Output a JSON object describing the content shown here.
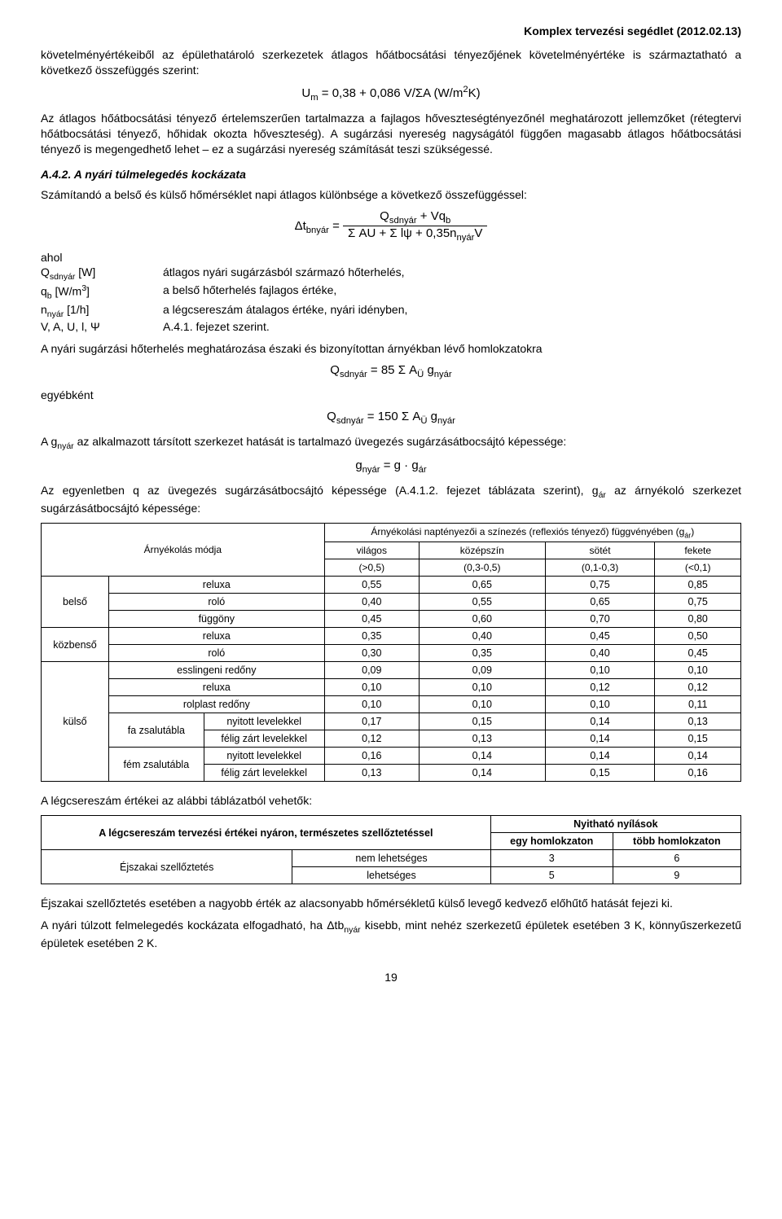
{
  "header": "Komplex tervezési segédlet (2012.02.13)",
  "p1": "követelményértékeiből az épülethatároló szerkezetek átlagos hőátbocsátási tényezőjének követelményértéke is származtatható a következő összefüggés szerint:",
  "f1": "U<sub>m</sub> = 0,38 + 0,086 V/ΣA (W/m<sup>2</sup>K)",
  "p2": "Az átlagos hőátbocsátási tényező értelemszerűen tartalmazza a fajlagos hőveszteségtényezőnél meghatározott jellemzőket (rétegtervi hőátbocsátási tényező, hőhidak okozta hőveszteség). A sugárzási nyereség nagyságától függően magasabb átlagos hőátbocsátási tényező is megengedhető lehet – ez a sugárzási nyereség számítását teszi szükségessé.",
  "sec": "A.4.2. A nyári túlmelegedés kockázata",
  "p3": "Számítandó a belső és külső hőmérséklet napi átlagos különbsége a következő összefüggéssel:",
  "frac_left": "Δt<sub>bnyár</sub> =",
  "frac_num": "Q<sub>sdnyár</sub> + Vq<sub>b</sub>",
  "frac_den": "Σ AU + Σ lψ + 0,35n<sub>nyár</sub>V",
  "defs_intro": "ahol",
  "defs": [
    {
      "k": "Q<sub>sdnyár</sub> [W]",
      "v": "átlagos nyári sugárzásból származó hőterhelés,"
    },
    {
      "k": "q<sub>b</sub> [W/m<sup>3</sup>]",
      "v": "a belső hőterhelés fajlagos értéke,"
    },
    {
      "k": "n<sub>nyár</sub> [1/h]",
      "v": "a légcsereszám átalagos értéke, nyári idényben,"
    },
    {
      "k": "V, A, U, l, Ψ",
      "v": "A.4.1. fejezet szerint."
    }
  ],
  "p4": "A nyári sugárzási hőterhelés meghatározása északi és bizonyítottan árnyékban lévő homlokzatokra",
  "f2": "Q<sub>sdnyár</sub> = 85 Σ A<sub>Ü</sub> g<sub>nyár</sub>",
  "p5": "egyébként",
  "f3": "Q<sub>sdnyár</sub> = 150 Σ A<sub>Ü</sub> g<sub>nyár</sub>",
  "p6": "A g<sub>nyár</sub> az alkalmazott társított szerkezet hatását is tartalmazó üvegezés sugárzásátbocsájtó képessége:",
  "f4": "g<sub>nyár</sub> = g · g<sub>ár</sub>",
  "p7": "Az egyenletben q az üvegezés sugárzásátbocsájtó képessége (A.4.1.2. fejezet táblázata szerint), g<sub>ár</sub> az árnyékoló szerkezet sugárzásátbocsájtó képessége:",
  "t1": {
    "h_main": "Árnyékolás módja",
    "h_super": "Árnyékolási naptényezői a színezés (reflexiós tényező) függvényében (g<sub>ár</sub>)",
    "cols": [
      {
        "label": "világos",
        "range": "(>0,5)"
      },
      {
        "label": "középszín",
        "range": "(0,3-0,5)"
      },
      {
        "label": "sötét",
        "range": "(0,1-0,3)"
      },
      {
        "label": "fekete",
        "range": "(<0,1)"
      }
    ],
    "groups": [
      {
        "group": "belső",
        "rowspan": 3,
        "rows": [
          {
            "name": "reluxa",
            "v": [
              "0,55",
              "0,65",
              "0,75",
              "0,85"
            ]
          },
          {
            "name": "roló",
            "v": [
              "0,40",
              "0,55",
              "0,65",
              "0,75"
            ]
          },
          {
            "name": "függöny",
            "v": [
              "0,45",
              "0,60",
              "0,70",
              "0,80"
            ]
          }
        ]
      },
      {
        "group": "közbenső",
        "rowspan": 2,
        "rows": [
          {
            "name": "reluxa",
            "v": [
              "0,35",
              "0,40",
              "0,45",
              "0,50"
            ]
          },
          {
            "name": "roló",
            "v": [
              "0,30",
              "0,35",
              "0,40",
              "0,45"
            ]
          }
        ]
      },
      {
        "group": "külső",
        "rowspan": 7,
        "rows": [
          {
            "name": "esslingeni redőny",
            "v": [
              "0,09",
              "0,09",
              "0,10",
              "0,10"
            ]
          },
          {
            "name": "reluxa",
            "v": [
              "0,10",
              "0,10",
              "0,12",
              "0,12"
            ]
          },
          {
            "name": "rolplast redőny",
            "v": [
              "0,10",
              "0,10",
              "0,10",
              "0,11"
            ]
          }
        ],
        "subgroups": [
          {
            "sub": "fa zsalutábla",
            "rows": [
              {
                "name": "nyitott levelekkel",
                "v": [
                  "0,17",
                  "0,15",
                  "0,14",
                  "0,13"
                ]
              },
              {
                "name": "félig zárt levelekkel",
                "v": [
                  "0,12",
                  "0,13",
                  "0,14",
                  "0,15"
                ]
              }
            ]
          },
          {
            "sub": "fém zsalutábla",
            "rows": [
              {
                "name": "nyitott levelekkel",
                "v": [
                  "0,16",
                  "0,14",
                  "0,14",
                  "0,14"
                ]
              },
              {
                "name": "félig zárt levelekkel",
                "v": [
                  "0,13",
                  "0,14",
                  "0,15",
                  "0,16"
                ]
              }
            ]
          }
        ]
      }
    ]
  },
  "p8": "A légcsereszám értékei az alábbi táblázatból vehetők:",
  "t2": {
    "h1": "A légcsereszám tervezési értékei nyáron, természetes szellőztetéssel",
    "h2": "Nyitható nyílások",
    "c1": "egy homlokzaton",
    "c2": "több homlokzaton",
    "rgroup": "Éjszakai szellőztetés",
    "rows": [
      {
        "name": "nem lehetséges",
        "v": [
          "3",
          "6"
        ]
      },
      {
        "name": "lehetséges",
        "v": [
          "5",
          "9"
        ]
      }
    ]
  },
  "p9": "Éjszakai szellőztetés esetében a nagyobb érték az alacsonyabb hőmérsékletű külső levegő kedvező előhűtő hatását fejezi ki.",
  "p10": "A nyári túlzott felmelegedés kockázata elfogadható, ha Δtb<sub>nyár</sub> kisebb, mint nehéz szerkezetű épületek esetében 3 K, könnyűszerkezetű épületek esetében 2 K.",
  "pagenum": "19"
}
